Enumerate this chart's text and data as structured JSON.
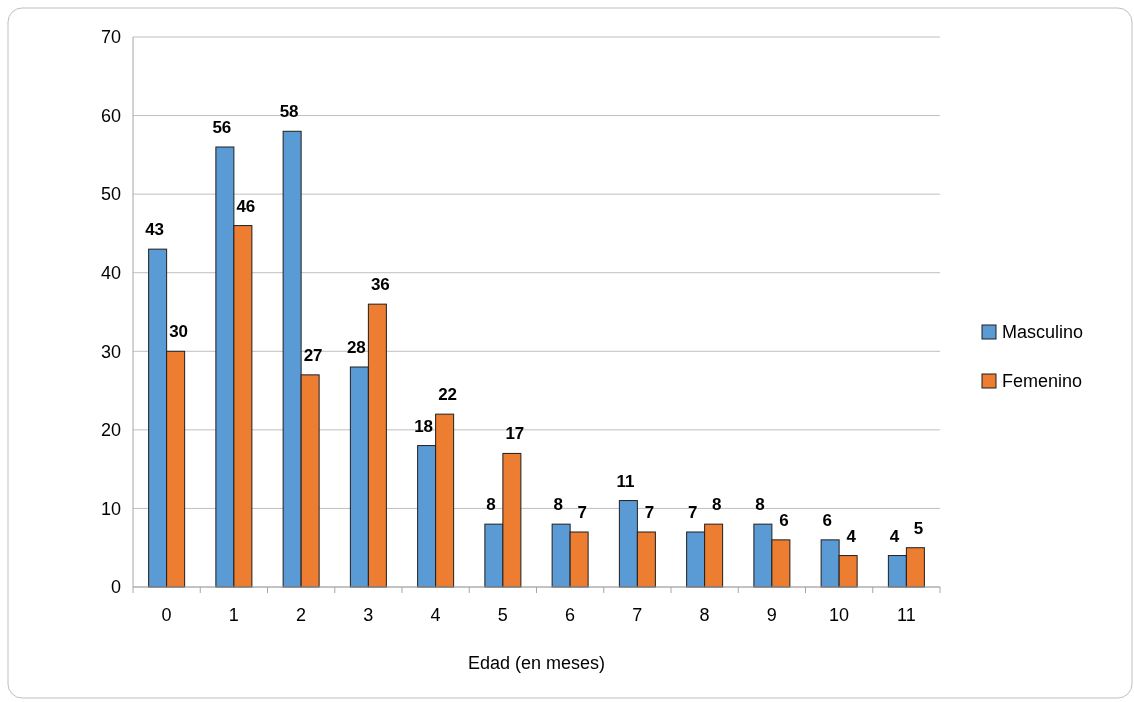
{
  "chart_data": {
    "type": "bar",
    "xlabel": "Edad (en meses)",
    "categories": [
      "0",
      "1",
      "2",
      "3",
      "4",
      "5",
      "6",
      "7",
      "8",
      "9",
      "10",
      "11"
    ],
    "series": [
      {
        "name": "Masculino",
        "color": "#5b9bd5",
        "values": [
          43,
          56,
          58,
          28,
          18,
          8,
          8,
          11,
          7,
          8,
          6,
          4
        ]
      },
      {
        "name": "Femenino",
        "color": "#ed7d31",
        "values": [
          30,
          46,
          27,
          36,
          22,
          17,
          7,
          7,
          8,
          6,
          4,
          5
        ]
      }
    ],
    "ylim": [
      0,
      70
    ],
    "yticks": [
      0,
      10,
      20,
      30,
      40,
      50,
      60,
      70
    ],
    "grid": "y",
    "legend": "right",
    "data_labels": true
  }
}
